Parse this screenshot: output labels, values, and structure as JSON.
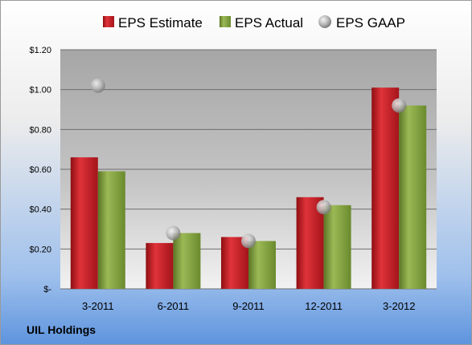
{
  "company": "UIL Holdings",
  "colors": {
    "estimate": "#c8161d",
    "actual": "#7f9c3a",
    "gaap": "#a0a0a0"
  },
  "chart_data": {
    "type": "bar",
    "categories": [
      "3-2011",
      "6-2011",
      "9-2011",
      "12-2011",
      "3-2012"
    ],
    "series": [
      {
        "name": "EPS Estimate",
        "kind": "bar",
        "values": [
          0.66,
          0.23,
          0.26,
          0.46,
          1.01
        ]
      },
      {
        "name": "EPS Actual",
        "kind": "bar",
        "values": [
          0.59,
          0.28,
          0.24,
          0.42,
          0.92
        ]
      },
      {
        "name": "EPS GAAP",
        "kind": "marker",
        "values": [
          1.02,
          0.28,
          0.24,
          0.41,
          0.92
        ]
      }
    ],
    "yticks": [
      "$-",
      "$0.20",
      "$0.40",
      "$0.60",
      "$0.80",
      "$1.00",
      "$1.20"
    ],
    "ylim": [
      0,
      1.2
    ],
    "grid": true,
    "legend": "top"
  }
}
